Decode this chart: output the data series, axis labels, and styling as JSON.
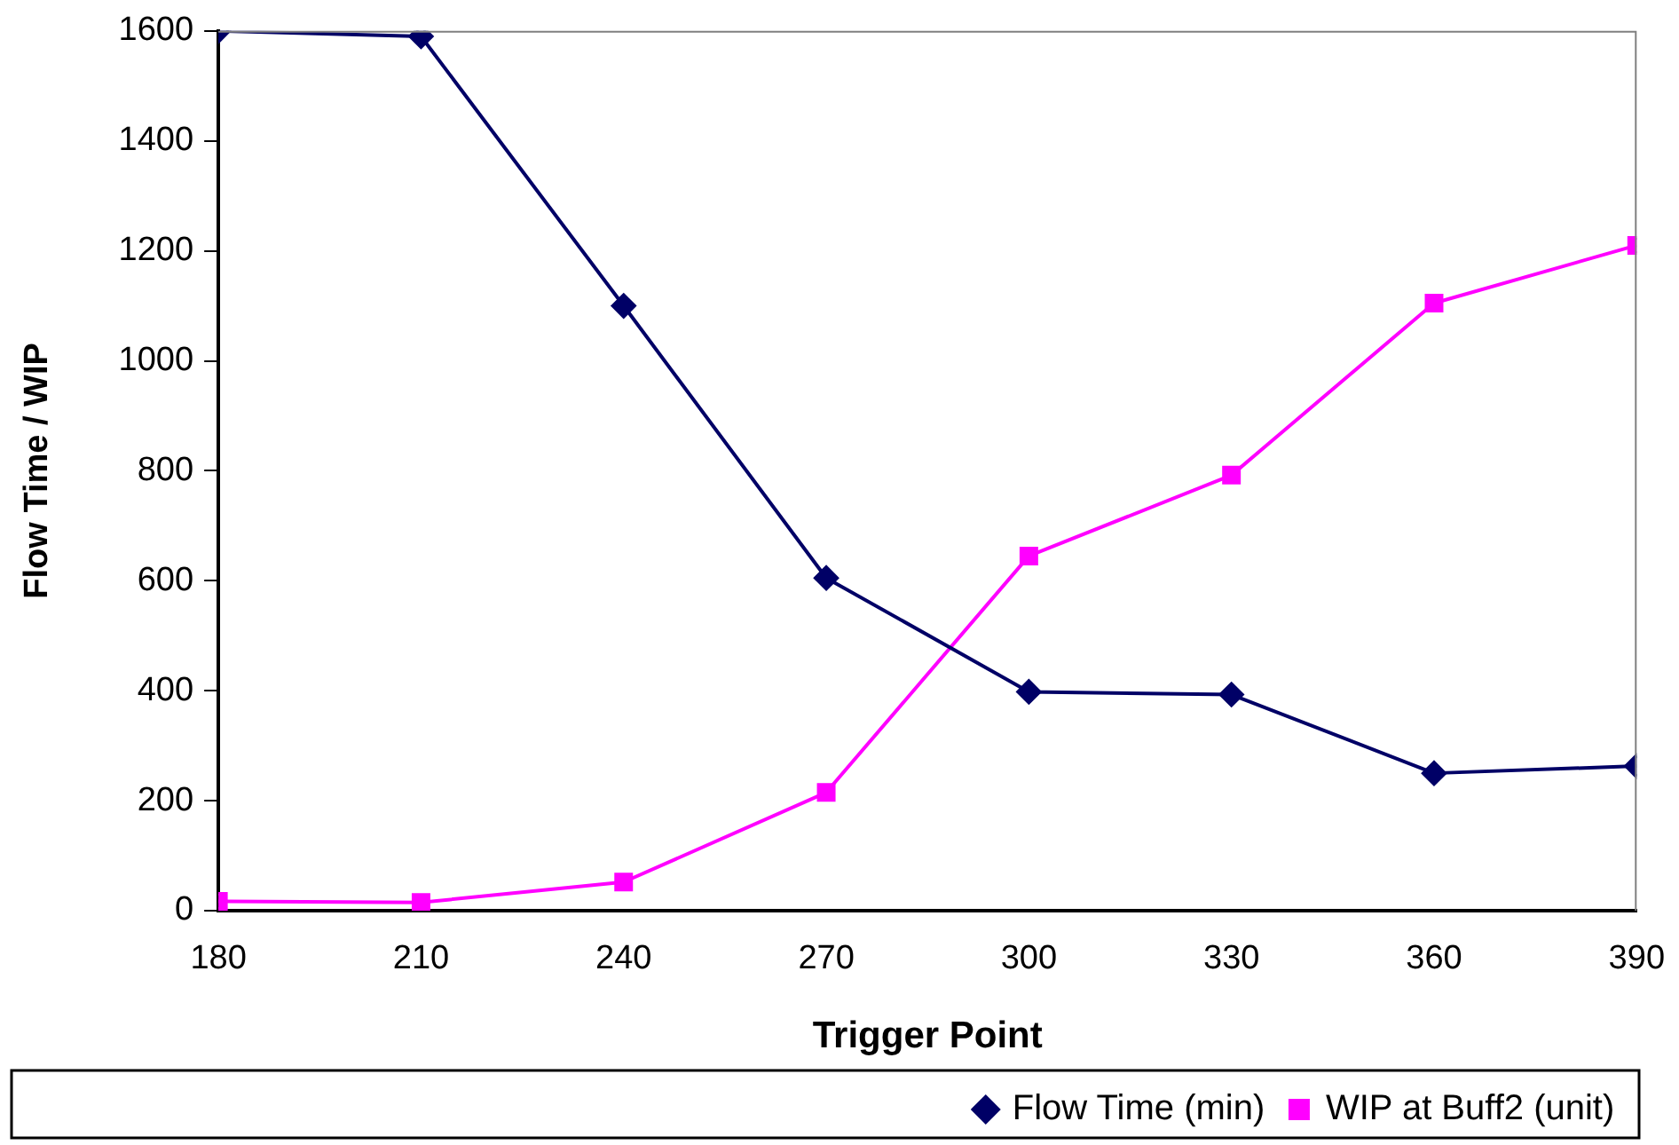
{
  "chart_data": {
    "type": "line",
    "xlabel": "Trigger Point",
    "ylabel": "Flow Time / WIP",
    "x": [
      180,
      210,
      240,
      270,
      300,
      330,
      360,
      390
    ],
    "xlim": [
      180,
      390
    ],
    "xticks": [
      180,
      210,
      240,
      270,
      300,
      330,
      360,
      390
    ],
    "ylim": [
      0,
      1600
    ],
    "yticks": [
      0,
      200,
      400,
      600,
      800,
      1000,
      1200,
      1400,
      1600
    ],
    "grid": false,
    "legend": "bottom",
    "line_style": "solid",
    "series": [
      {
        "name": "Flow Time (min)",
        "color": "#000066",
        "marker": "diamond",
        "values": [
          1600,
          1590,
          1100,
          605,
          398,
          393,
          250,
          263
        ]
      },
      {
        "name": "WIP at Buff2 (unit)",
        "color": "#ff00ff",
        "marker": "square",
        "values": [
          17,
          15,
          52,
          215,
          645,
          792,
          1105,
          1210
        ]
      }
    ]
  }
}
